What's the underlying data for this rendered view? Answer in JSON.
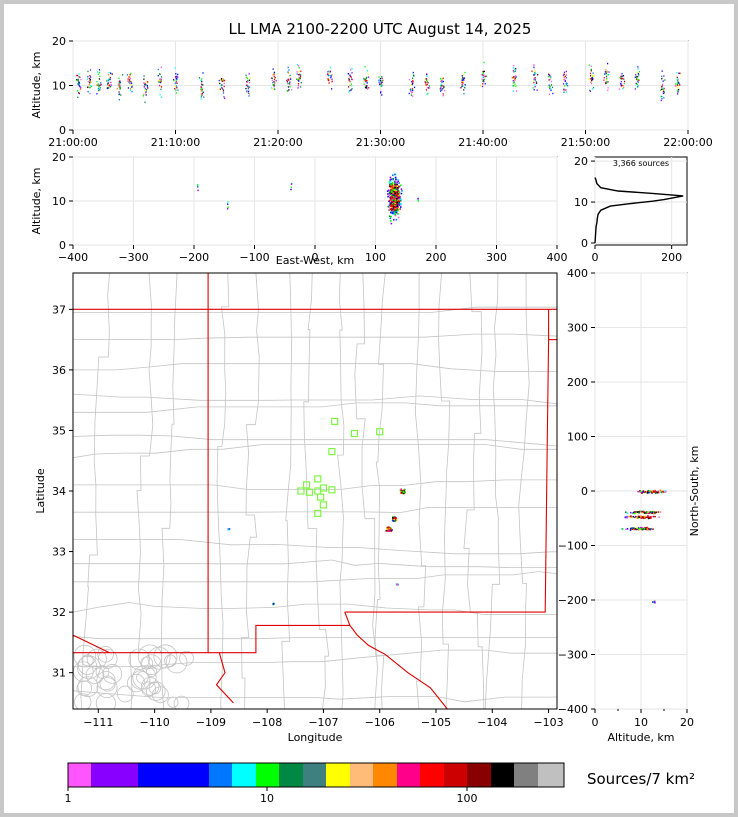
{
  "title": "LL LMA 2100-2200 UTC August 14, 2025",
  "source_count_label": "3,366 sources",
  "colorbar_label": "Sources/7 km²",
  "colors": {
    "state_border": "#e00000",
    "county_border": "#c4c4c4",
    "station_marker": "#7ef542",
    "grid": "#e6e6e6"
  },
  "chart_data": [
    {
      "id": "time_height",
      "type": "scatter",
      "xlabel": "",
      "ylabel": "Altitude, km",
      "x_ticks": [
        "21:00:00",
        "21:10:00",
        "21:20:00",
        "21:30:00",
        "21:40:00",
        "21:50:00",
        "22:00:00"
      ],
      "xlim_minutes": [
        0,
        60
      ],
      "ylim": [
        0,
        20
      ],
      "y_ticks": [
        0,
        10,
        20
      ],
      "grid": true,
      "note_x": "x in minutes after 21:00 UTC; y altitude km",
      "point_clusters": [
        {
          "t": 0.5,
          "alt": 10.5
        },
        {
          "t": 1.5,
          "alt": 11
        },
        {
          "t": 2.5,
          "alt": 10
        },
        {
          "t": 3.5,
          "alt": 11
        },
        {
          "t": 4.5,
          "alt": 10
        },
        {
          "t": 5.5,
          "alt": 11
        },
        {
          "t": 7.0,
          "alt": 10
        },
        {
          "t": 8.5,
          "alt": 11
        },
        {
          "t": 10,
          "alt": 11
        },
        {
          "t": 12.5,
          "alt": 10
        },
        {
          "t": 14.5,
          "alt": 10.5
        },
        {
          "t": 17,
          "alt": 10
        },
        {
          "t": 19.5,
          "alt": 11
        },
        {
          "t": 21,
          "alt": 11
        },
        {
          "t": 22,
          "alt": 12
        },
        {
          "t": 25,
          "alt": 12
        },
        {
          "t": 27,
          "alt": 11
        },
        {
          "t": 28.5,
          "alt": 11
        },
        {
          "t": 30,
          "alt": 11
        },
        {
          "t": 33,
          "alt": 10
        },
        {
          "t": 34.5,
          "alt": 11
        },
        {
          "t": 36,
          "alt": 10
        },
        {
          "t": 38,
          "alt": 11
        },
        {
          "t": 40,
          "alt": 12
        },
        {
          "t": 43,
          "alt": 12
        },
        {
          "t": 45,
          "alt": 12
        },
        {
          "t": 46.5,
          "alt": 11
        },
        {
          "t": 48,
          "alt": 11
        },
        {
          "t": 50.5,
          "alt": 12
        },
        {
          "t": 52,
          "alt": 12
        },
        {
          "t": 53.5,
          "alt": 11
        },
        {
          "t": 55,
          "alt": 12
        },
        {
          "t": 57.5,
          "alt": 10
        },
        {
          "t": 59,
          "alt": 11
        }
      ]
    },
    {
      "id": "ew_height",
      "type": "scatter",
      "xlabel": "East-West, km",
      "ylabel": "Altitude, km",
      "xlim": [
        -400,
        400
      ],
      "x_ticks": [
        -400,
        -300,
        -200,
        -100,
        0,
        100,
        200,
        300,
        400
      ],
      "ylim": [
        0,
        20
      ],
      "y_ticks": [
        0,
        10,
        20
      ],
      "grid": true,
      "main_cluster": {
        "x": 130,
        "alt": 11
      },
      "outliers": [
        {
          "x": 170,
          "alt": 10.5
        },
        {
          "x": -195,
          "alt": 13.5
        },
        {
          "x": -145,
          "alt": 9
        },
        {
          "x": -40,
          "alt": 13.5
        }
      ]
    },
    {
      "id": "height_histogram",
      "type": "line",
      "xlim": [
        0,
        240
      ],
      "x_ticks": [
        0,
        200
      ],
      "ylim": [
        0,
        21
      ],
      "y_ticks": [
        0,
        10,
        20
      ],
      "grid": true,
      "profile": [
        [
          0,
          0
        ],
        [
          2,
          3
        ],
        [
          3,
          4
        ],
        [
          5,
          5
        ],
        [
          6,
          6
        ],
        [
          8,
          7
        ],
        [
          15,
          8
        ],
        [
          40,
          9
        ],
        [
          90,
          9.6
        ],
        [
          150,
          10.2
        ],
        [
          180,
          10.6
        ],
        [
          230,
          11.5
        ],
        [
          150,
          12.1
        ],
        [
          60,
          12.7
        ],
        [
          15,
          13.5
        ],
        [
          5,
          14.5
        ],
        [
          2,
          15.5
        ],
        [
          0,
          16
        ]
      ]
    },
    {
      "id": "plan_view",
      "type": "scatter",
      "xlabel": "Longitude",
      "ylabel": "Latitude",
      "xlim": [
        -111.45,
        -102.85
      ],
      "ylim": [
        30.4,
        37.6
      ],
      "x_ticks": [
        -111,
        -110,
        -109,
        -108,
        -107,
        -106,
        -105,
        -104,
        -103
      ],
      "y_ticks": [
        31,
        32,
        33,
        34,
        35,
        36,
        37
      ],
      "source_clusters": [
        {
          "lon": -105.75,
          "lat": 33.55
        },
        {
          "lon": -105.6,
          "lat": 34.0
        },
        {
          "lon": -105.85,
          "lat": 33.38
        },
        {
          "lon": -108.7,
          "lat": 33.38
        },
        {
          "lon": -107.9,
          "lat": 32.15
        },
        {
          "lon": -105.7,
          "lat": 32.47
        }
      ],
      "stations": [
        {
          "lon": -106.8,
          "lat": 35.15
        },
        {
          "lon": -106.45,
          "lat": 34.95
        },
        {
          "lon": -106.0,
          "lat": 34.98
        },
        {
          "lon": -106.85,
          "lat": 34.65
        },
        {
          "lon": -107.1,
          "lat": 34.2
        },
        {
          "lon": -107.3,
          "lat": 34.1
        },
        {
          "lon": -107.4,
          "lat": 34.0
        },
        {
          "lon": -107.25,
          "lat": 33.98
        },
        {
          "lon": -107.1,
          "lat": 34.0
        },
        {
          "lon": -106.85,
          "lat": 34.02
        },
        {
          "lon": -107.05,
          "lat": 33.9
        },
        {
          "lon": -107.0,
          "lat": 33.77
        },
        {
          "lon": -107.1,
          "lat": 33.63
        },
        {
          "lon": -107.0,
          "lat": 34.05
        }
      ]
    },
    {
      "id": "height_ns",
      "type": "scatter",
      "xlabel": "Altitude, km",
      "ylabel": "North-South, km",
      "xlim": [
        0,
        20
      ],
      "x_ticks": [
        0,
        10,
        20
      ],
      "x_minor": [
        5,
        15
      ],
      "ylim": [
        -400,
        400
      ],
      "y_ticks": [
        -400,
        -300,
        -200,
        -100,
        0,
        100,
        200,
        300,
        400
      ],
      "grid": true,
      "bands": [
        {
          "ns": 0,
          "alt": 12
        },
        {
          "ns": -38,
          "alt": 11
        },
        {
          "ns": -47,
          "alt": 10
        },
        {
          "ns": -68,
          "alt": 10
        },
        {
          "ns": -202,
          "alt": 13
        }
      ]
    },
    {
      "id": "colorbar",
      "type": "heatmap",
      "colors": [
        "#ff55ff",
        "#8800ff",
        "#8800ff",
        "#0000ff",
        "#0000ff",
        "#0077ff",
        "#00ffff",
        "#00ff00",
        "#008844",
        "#3e8080",
        "#ffff00",
        "#ffbb77",
        "#ff8800",
        "#ff0088",
        "#ff0000",
        "#cc0000",
        "#880000",
        "#000000",
        "#808080",
        "#c0c0c0",
        "#ffffff"
      ],
      "tick_labels": [
        "1",
        "10",
        "100"
      ]
    }
  ]
}
